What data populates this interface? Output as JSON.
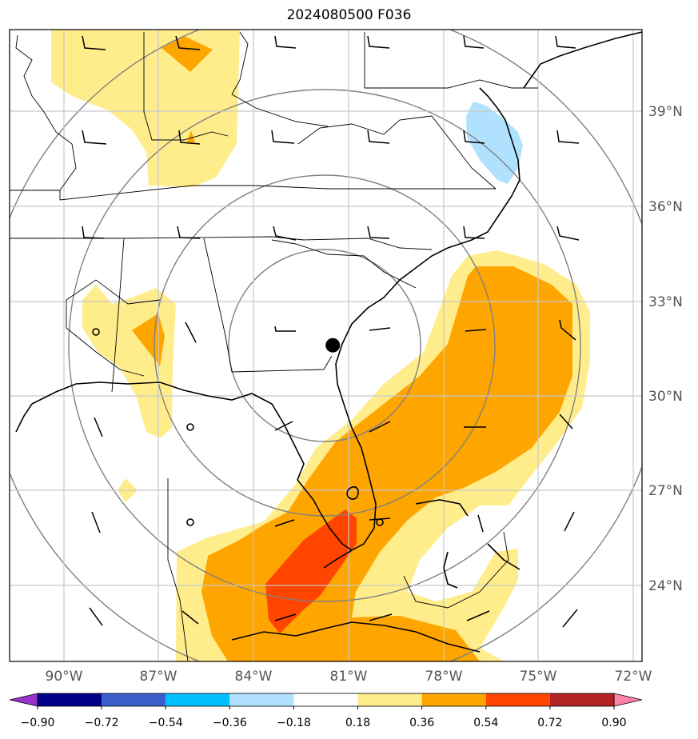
{
  "title": "2024080500 F036",
  "center_marker": {
    "lat": 31.6,
    "lon": -81.5
  },
  "lat_ticks": [
    "24°N",
    "27°N",
    "30°N",
    "33°N",
    "36°N",
    "39°N"
  ],
  "lon_ticks": [
    "90°W",
    "87°W",
    "84°W",
    "81°W",
    "78°W",
    "75°W",
    "72°W"
  ],
  "colorbar": {
    "levels": [
      "−0.90",
      "−0.72",
      "−0.54",
      "−0.36",
      "−0.18",
      "0.18",
      "0.36",
      "0.54",
      "0.72",
      "0.90"
    ],
    "colors": [
      "#9932cc",
      "#00008b",
      "#3a5fcd",
      "#00bfff",
      "#b0e2ff",
      "#ffffff",
      "#ffec8b",
      "#ffa500",
      "#ff4500",
      "#b22222",
      "#ff82ab"
    ]
  },
  "fill_colors": {
    "light_yellow": "#ffec8b",
    "orange": "#ffa500",
    "red_orange": "#ff4500",
    "light_blue": "#b0e2ff"
  }
}
